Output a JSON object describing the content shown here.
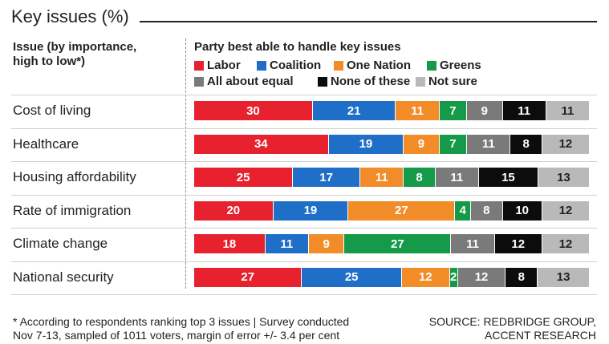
{
  "title": "Key issues (%)",
  "left_header_line1": "Issue (by importance,",
  "left_header_line2": "high to low*)",
  "right_header": "Party best able to handle key issues",
  "footnote_line1": "* According to respondents ranking top 3 issues  |  Survey conducted",
  "footnote_line2": "Nov 7-13,  sampled of 1011 voters, margin of error +/- 3.4 per cent",
  "source_line1": "SOURCE: REDBRIDGE GROUP,",
  "source_line2": "ACCENT RESEARCH",
  "colors": {
    "Labor": "#e8212f",
    "Coalition": "#1f6fc9",
    "One Nation": "#f28c28",
    "Greens": "#149a48",
    "All about equal": "#7a7a7a",
    "None of these": "#0c0c0c",
    "Not sure": "#b9b9b9"
  },
  "chart_data": {
    "type": "bar",
    "orientation": "horizontal-stacked",
    "title": "Key issues (%)",
    "subtitle": "Party best able to handle key issues",
    "categories": [
      "Cost of living",
      "Healthcare",
      "Housing affordability",
      "Rate of immigration",
      "Climate change",
      "National security"
    ],
    "series": [
      {
        "name": "Labor",
        "values": [
          30,
          34,
          25,
          20,
          18,
          27
        ]
      },
      {
        "name": "Coalition",
        "values": [
          21,
          19,
          17,
          19,
          11,
          25
        ]
      },
      {
        "name": "One Nation",
        "values": [
          11,
          9,
          11,
          27,
          9,
          12
        ]
      },
      {
        "name": "Greens",
        "values": [
          7,
          7,
          8,
          4,
          27,
          2
        ]
      },
      {
        "name": "All about equal",
        "values": [
          9,
          11,
          11,
          8,
          11,
          12
        ]
      },
      {
        "name": "None of these",
        "values": [
          11,
          8,
          15,
          10,
          12,
          8
        ]
      },
      {
        "name": "Not sure",
        "values": [
          11,
          12,
          13,
          12,
          12,
          13
        ]
      }
    ]
  }
}
